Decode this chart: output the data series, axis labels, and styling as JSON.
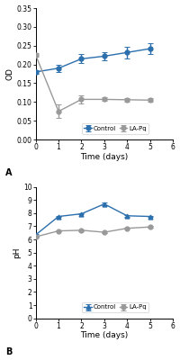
{
  "top": {
    "x": [
      0,
      1,
      2,
      3,
      4,
      5
    ],
    "control_y": [
      0.18,
      0.19,
      0.215,
      0.222,
      0.232,
      0.242
    ],
    "control_err": [
      0.005,
      0.01,
      0.012,
      0.01,
      0.015,
      0.015
    ],
    "lapq_y": [
      0.225,
      0.075,
      0.107,
      0.107,
      0.106,
      0.105
    ],
    "lapq_err": [
      0.005,
      0.018,
      0.01,
      0.005,
      0.005,
      0.005
    ],
    "ylabel": "OD",
    "xlabel": "Time (days)",
    "ylim": [
      0.0,
      0.35
    ],
    "yticks": [
      0.0,
      0.05,
      0.1,
      0.15,
      0.2,
      0.25,
      0.3,
      0.35
    ],
    "xlim": [
      0,
      6
    ],
    "label": "A"
  },
  "bottom": {
    "x": [
      0,
      1,
      2,
      3,
      4,
      5
    ],
    "control_y": [
      6.35,
      7.75,
      7.95,
      8.7,
      7.8,
      7.75
    ],
    "control_err": [
      0.05,
      0.05,
      0.05,
      0.1,
      0.05,
      0.05
    ],
    "lapq_y": [
      6.2,
      6.65,
      6.7,
      6.55,
      6.85,
      6.95
    ],
    "lapq_err": [
      0.05,
      0.05,
      0.05,
      0.05,
      0.05,
      0.05
    ],
    "ylabel": "pH",
    "xlabel": "Time (days)",
    "ylim": [
      0,
      10
    ],
    "yticks": [
      0,
      1,
      2,
      3,
      4,
      5,
      6,
      7,
      8,
      9,
      10
    ],
    "xlim": [
      0,
      6
    ],
    "label": "B"
  },
  "control_color": "#2c6fad",
  "lapq_color": "#999999",
  "control_label": "Control",
  "lapq_label": "LA-Pq",
  "bg_color": "#ffffff"
}
